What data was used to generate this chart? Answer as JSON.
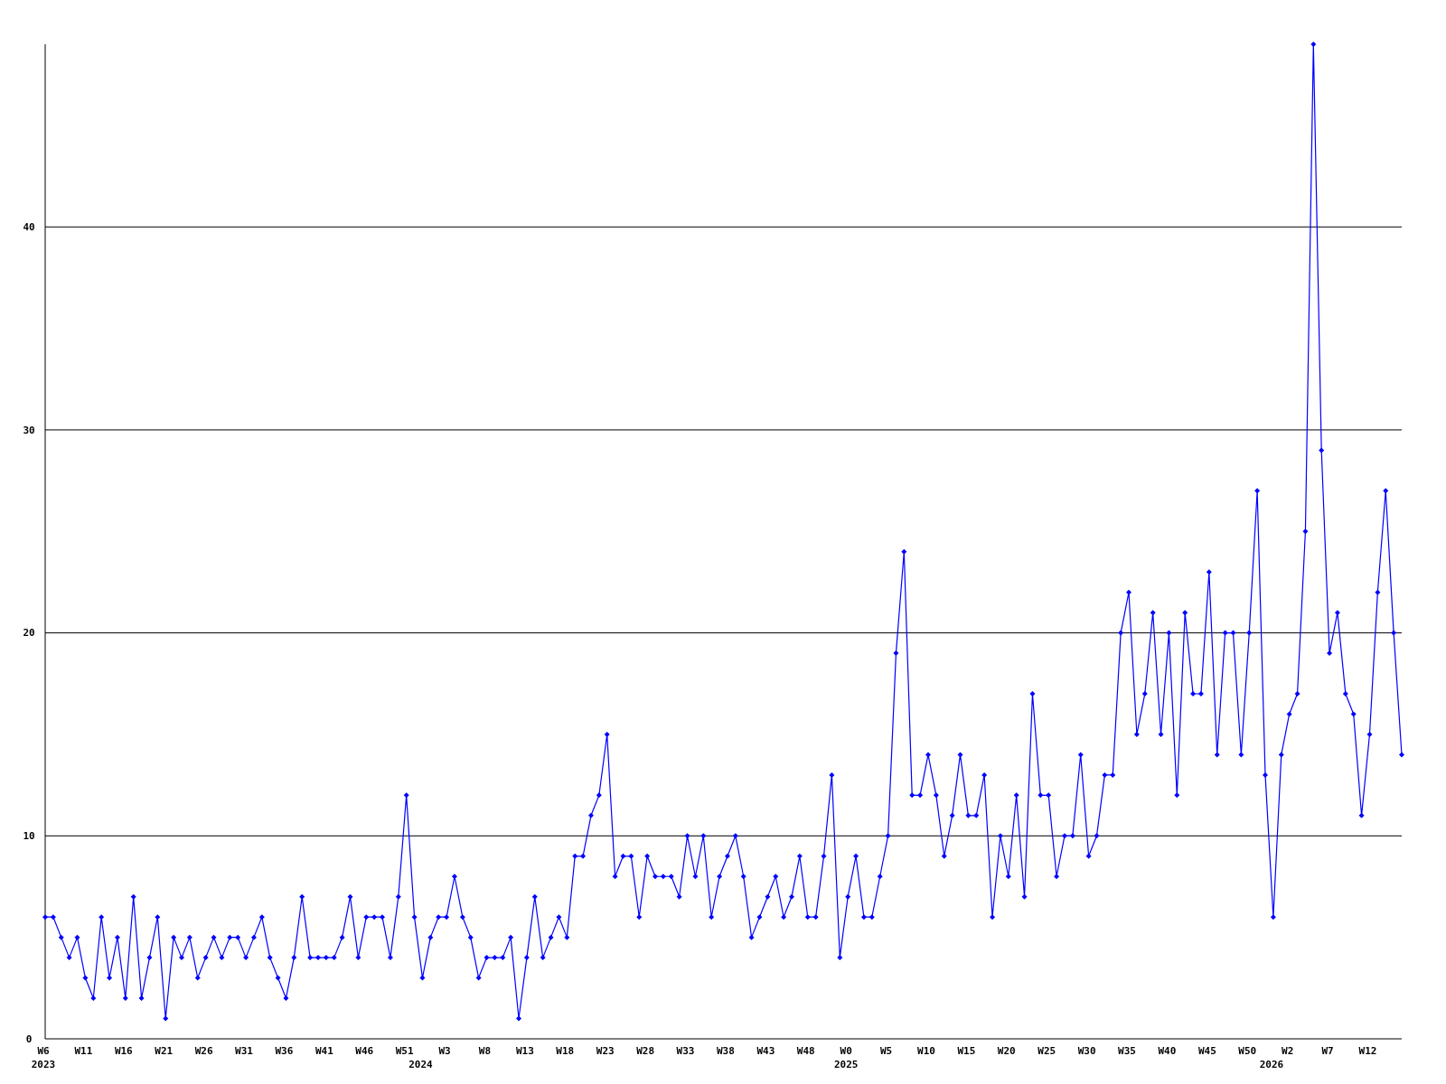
{
  "chart_data": {
    "type": "line",
    "categories": [
      "W6\n2023",
      null,
      null,
      null,
      null,
      "W11",
      null,
      null,
      null,
      null,
      "W16",
      null,
      null,
      null,
      null,
      "W21",
      null,
      null,
      null,
      null,
      "W26",
      null,
      null,
      null,
      null,
      "W31",
      null,
      null,
      null,
      null,
      "W36",
      null,
      null,
      null,
      null,
      "W41",
      null,
      null,
      null,
      null,
      "W46",
      null,
      null,
      null,
      null,
      "W51",
      null,
      "\n2024",
      null,
      null,
      "W3",
      null,
      null,
      null,
      null,
      "W8",
      null,
      null,
      null,
      null,
      "W13",
      null,
      null,
      null,
      null,
      "W18",
      null,
      null,
      null,
      null,
      "W23",
      null,
      null,
      null,
      null,
      "W28",
      null,
      null,
      null,
      null,
      "W33",
      null,
      null,
      null,
      null,
      "W38",
      null,
      null,
      null,
      null,
      "W43",
      null,
      null,
      null,
      null,
      "W48",
      null,
      null,
      null,
      null,
      "W0\n2025",
      null,
      null,
      null,
      null,
      "W5",
      null,
      null,
      null,
      null,
      "W10",
      null,
      null,
      null,
      null,
      "W15",
      null,
      null,
      null,
      null,
      "W20",
      null,
      null,
      null,
      null,
      "W25",
      null,
      null,
      null,
      null,
      "W30",
      null,
      null,
      null,
      null,
      "W35",
      null,
      null,
      null,
      null,
      "W40",
      null,
      null,
      null,
      null,
      "W45",
      null,
      null,
      null,
      null,
      "W50",
      null,
      null,
      "\n2026",
      null,
      "W2",
      null,
      null,
      null,
      null,
      "W7",
      null,
      null,
      null,
      null,
      "W12",
      null,
      null,
      null,
      null
    ],
    "series": [
      {
        "color": "#0000ff",
        "values": [
          6,
          6,
          5,
          4,
          5,
          3,
          2,
          6,
          3,
          5,
          2,
          7,
          2,
          4,
          6,
          1,
          5,
          4,
          5,
          3,
          4,
          5,
          4,
          5,
          5,
          4,
          5,
          6,
          4,
          3,
          2,
          4,
          7,
          4,
          4,
          4,
          4,
          5,
          7,
          4,
          6,
          6,
          6,
          4,
          7,
          12,
          6,
          3,
          5,
          6,
          6,
          8,
          6,
          5,
          3,
          4,
          4,
          4,
          5,
          1,
          4,
          7,
          4,
          5,
          6,
          5,
          9,
          9,
          11,
          12,
          15,
          8,
          9,
          9,
          6,
          9,
          8,
          8,
          8,
          7,
          10,
          8,
          10,
          6,
          8,
          9,
          10,
          8,
          5,
          6,
          7,
          8,
          6,
          7,
          9,
          6,
          6,
          9,
          13,
          4,
          7,
          9,
          6,
          6,
          8,
          10,
          19,
          24,
          12,
          12,
          14,
          12,
          9,
          11,
          14,
          11,
          11,
          13,
          6,
          10,
          8,
          12,
          7,
          17,
          12,
          12,
          8,
          10,
          10,
          14,
          9,
          10,
          13,
          13,
          20,
          22,
          15,
          17,
          21,
          15,
          20,
          12,
          21,
          17,
          17,
          23,
          14,
          20,
          20,
          14,
          20,
          27,
          13,
          6,
          14,
          16,
          17,
          25,
          49,
          29,
          19,
          21,
          17,
          16,
          11,
          15,
          22,
          27,
          20,
          14
        ]
      }
    ],
    "ylim": [
      0,
      49
    ],
    "yticks": [
      0,
      10,
      20,
      30,
      40
    ],
    "grid": "y",
    "marker": "diamond",
    "line_style": "solid"
  }
}
